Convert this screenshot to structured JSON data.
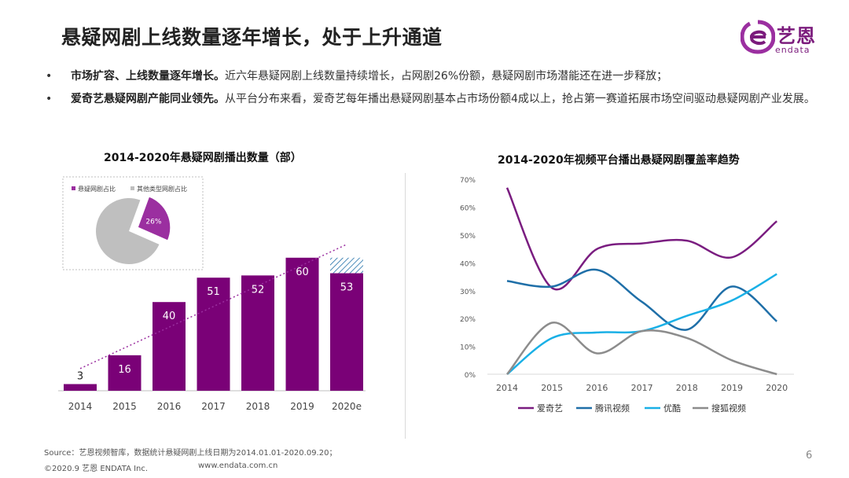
{
  "header": {
    "title": "悬疑网剧上线数量逐年增长，处于上升通道",
    "logo_cn": "艺恩",
    "logo_en": "endata"
  },
  "bullets": [
    {
      "bold": "市场扩容、上线数量逐年增长。",
      "text": "近六年悬疑网剧上线数量持续增长，占网剧26%份额，悬疑网剧市场潜能还在进一步释放；"
    },
    {
      "bold": "爱奇艺悬疑网剧产能同业领先。",
      "text": "从平台分布来看，爱奇艺每年播出悬疑网剧基本占市场份额4成以上，抢占第一赛道拓展市场空间驱动悬疑网剧产业发展。"
    }
  ],
  "left_chart": {
    "title": "2014-2020年悬疑网剧播出数量（部）",
    "pie": {
      "legend": [
        "悬疑网剧占比",
        "其他类型网剧占比"
      ],
      "highlight_label": "26%",
      "highlight_value": 26,
      "colors": [
        "#9b2fa0",
        "#bfbfbf"
      ]
    }
  },
  "right_chart": {
    "title": "2014-2020年视频平台播出悬疑网剧覆盖率趋势",
    "y_ticks": [
      "70%",
      "60%",
      "50%",
      "40%",
      "30%",
      "20%",
      "10%",
      "0%"
    ]
  },
  "chart_data": [
    {
      "type": "bar",
      "title": "2014-2020年悬疑网剧播出数量（部）",
      "categories": [
        "2014",
        "2015",
        "2016",
        "2017",
        "2018",
        "2019",
        "2020e"
      ],
      "values": [
        3,
        16,
        40,
        51,
        52,
        60,
        53
      ],
      "projected_extra": {
        "category": "2020e",
        "value": 60
      },
      "trendline": true,
      "color": "#7a0177",
      "ylim": [
        0,
        70
      ]
    },
    {
      "type": "line",
      "title": "2014-2020年视频平台播出悬疑网剧覆盖率趋势",
      "x": [
        "2014",
        "2015",
        "2016",
        "2017",
        "2018",
        "2019",
        "2020"
      ],
      "ylim": [
        0,
        70
      ],
      "y_unit": "%",
      "series": [
        {
          "name": "爱奇艺",
          "color": "#7a1d80",
          "values": [
            67,
            31,
            45,
            47,
            48,
            42,
            55
          ]
        },
        {
          "name": "腾讯视频",
          "color": "#1f6fa8",
          "values": [
            33.5,
            31.5,
            37.5,
            26,
            16,
            31.5,
            19
          ]
        },
        {
          "name": "优酷",
          "color": "#1ab0e6",
          "values": [
            0,
            13,
            15,
            15.5,
            21,
            26.5,
            36
          ]
        },
        {
          "name": "搜狐视频",
          "color": "#8c8c8c",
          "values": [
            0,
            18.5,
            7.5,
            15.5,
            13,
            5,
            0
          ]
        }
      ]
    }
  ],
  "footer": {
    "source": "Source：艺恩视频智库，数据统计悬疑网剧上线日期为2014.01.01-2020.09.20；",
    "copyright": "©2020.9 艺恩 ENDATA Inc.",
    "website": "www.endata.com.cn",
    "page": "6"
  }
}
